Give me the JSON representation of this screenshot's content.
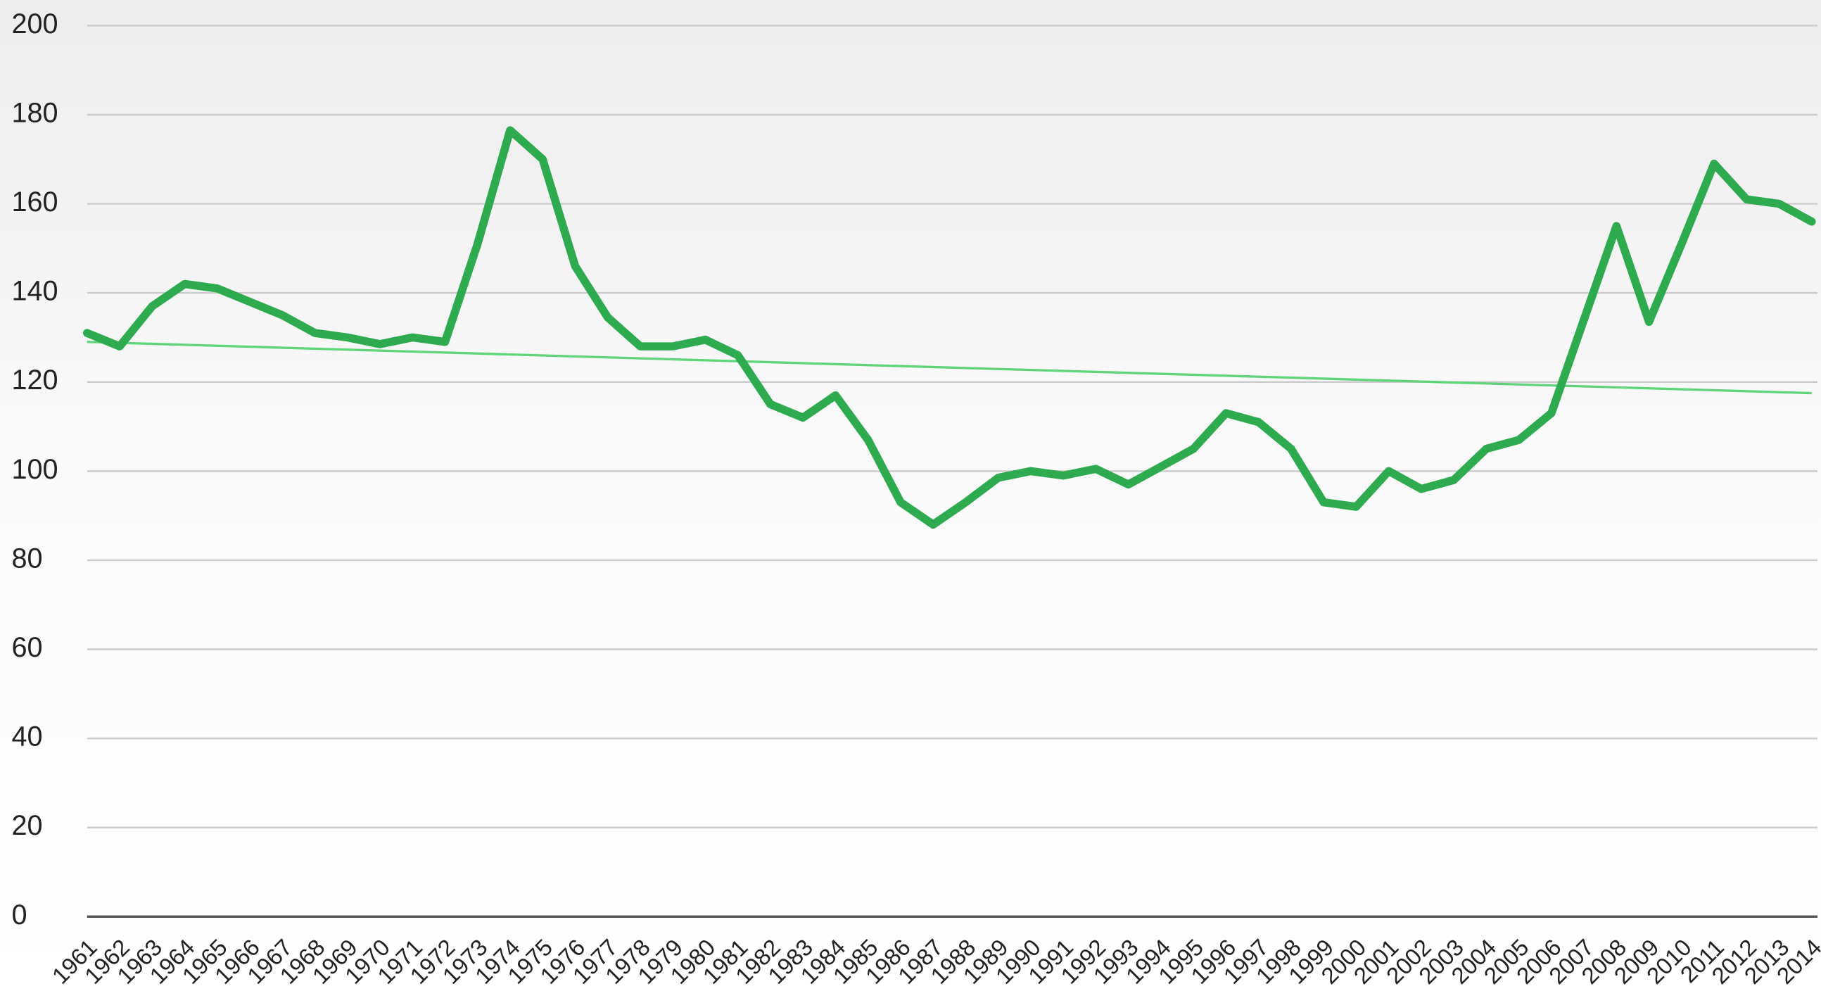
{
  "chart_data": {
    "type": "line",
    "categories": [
      "1961",
      "1962",
      "1963",
      "1964",
      "1965",
      "1966",
      "1967",
      "1968",
      "1969",
      "1970",
      "1971",
      "1972",
      "1973",
      "1974",
      "1975",
      "1976",
      "1977",
      "1978",
      "1979",
      "1980",
      "1981",
      "1982",
      "1983",
      "1984",
      "1985",
      "1986",
      "1987",
      "1988",
      "1989",
      "1990",
      "1991",
      "1992",
      "1993",
      "1994",
      "1995",
      "1996",
      "1997",
      "1998",
      "1999",
      "2000",
      "2001",
      "2002",
      "2003",
      "2004",
      "2005",
      "2006",
      "2007",
      "2008",
      "2009",
      "2010",
      "2011",
      "2012",
      "2013",
      "2014"
    ],
    "series": [
      {
        "color": "#2eaa4f",
        "values": [
          131,
          128,
          137,
          142,
          141,
          138,
          135,
          131,
          130,
          128.5,
          130,
          129,
          151,
          176.5,
          170,
          146,
          134.5,
          128,
          128,
          129.5,
          126,
          115,
          112,
          117,
          107,
          93,
          88,
          93,
          98.5,
          100,
          99,
          100.5,
          97,
          101,
          105,
          113,
          111,
          105,
          93,
          92,
          100,
          96,
          98,
          105,
          107,
          113,
          134,
          155,
          133.5,
          151,
          169,
          161,
          160,
          156
        ]
      }
    ],
    "trend": {
      "color": "#5fd47a",
      "values": [
        129,
        117.5
      ]
    },
    "ylim": [
      0,
      200
    ],
    "yticks": [
      0,
      20,
      40,
      60,
      80,
      100,
      120,
      140,
      160,
      180,
      200
    ],
    "grid": true
  }
}
